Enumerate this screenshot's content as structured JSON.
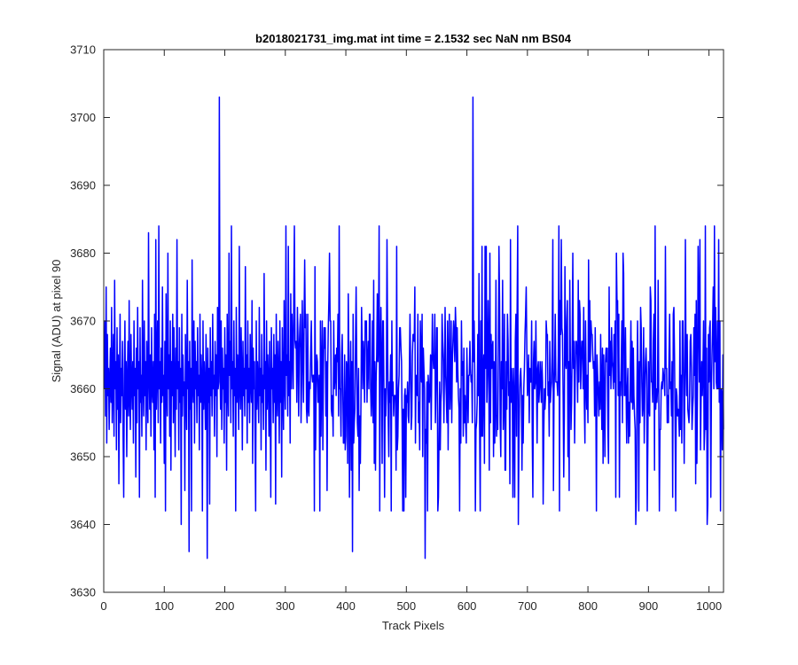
{
  "chart_data": {
    "type": "line",
    "title": "b2018021731_img.mat int time = 2.1532 sec  NaN nm BS04",
    "xlabel": "Track Pixels",
    "ylabel": "Signal (ADU) at pixel 90",
    "xlim": [
      0,
      1024
    ],
    "ylim": [
      3630,
      3710
    ],
    "xticks": [
      0,
      100,
      200,
      300,
      400,
      500,
      600,
      700,
      800,
      900,
      1000
    ],
    "yticks": [
      3630,
      3640,
      3650,
      3660,
      3670,
      3680,
      3690,
      3700,
      3710
    ],
    "grid": false,
    "legend": "none",
    "series": [
      {
        "color": "#0000ff",
        "x_start": 1,
        "x_step": 1,
        "approx_count": 1024,
        "baseline_mean": 3662,
        "y": [
          3660,
          3670,
          3656,
          3675,
          3652,
          3668,
          3659,
          3663,
          3654,
          3661,
          3666,
          3658,
          3672,
          3655,
          3662,
          3668,
          3653,
          3676,
          3660,
          3664,
          3651,
          3669,
          3657,
          3665,
          3646,
          3661,
          3671,
          3655,
          3663,
          3659,
          3667,
          3653,
          3644,
          3662,
          3670,
          3657,
          3664,
          3650,
          3661,
          3667,
          3656,
          3673,
          3659,
          3654,
          3668,
          3661,
          3657,
          3664,
          3652,
          3670,
          3659,
          3663,
          3647,
          3666,
          3655,
          3672,
          3660,
          3664,
          3644,
          3669,
          3658,
          3662,
          3653,
          3676,
          3661,
          3656,
          3670,
          3659,
          3664,
          3651,
          3667,
          3660,
          3655,
          3683,
          3662,
          3657,
          3665,
          3653,
          3669,
          3660,
          3658,
          3664,
          3651,
          3671,
          3644,
          3682,
          3657,
          3663,
          3670,
          3655,
          3684,
          3660,
          3664,
          3652,
          3666,
          3658,
          3675,
          3659,
          3662,
          3649,
          3667,
          3642,
          3674,
          3661,
          3656,
          3680,
          3660,
          3665,
          3653,
          3670,
          3648,
          3664,
          3659,
          3671,
          3655,
          3669,
          3661,
          3650,
          3666,
          3657,
          3682,
          3660,
          3664,
          3651,
          3669,
          3658,
          3663,
          3640,
          3671,
          3656,
          3665,
          3659,
          3661,
          3645,
          3668,
          3660,
          3654,
          3676,
          3660,
          3664,
          3636,
          3667,
          3657,
          3663,
          3642,
          3679,
          3661,
          3658,
          3670,
          3652,
          3667,
          3660,
          3664,
          3655,
          3669,
          3659,
          3662,
          3651,
          3671,
          3658,
          3665,
          3661,
          3642,
          3670,
          3657,
          3664,
          3660,
          3654,
          3668,
          3661,
          3635,
          3666,
          3658,
          3663,
          3643,
          3669,
          3659,
          3664,
          3656,
          3671,
          3660,
          3662,
          3653,
          3667,
          3659,
          3665,
          3650,
          3672,
          3660,
          3661,
          3703,
          3664,
          3657,
          3670,
          3654,
          3666,
          3660,
          3663,
          3652,
          3669,
          3658,
          3665,
          3648,
          3671,
          3661,
          3656,
          3680,
          3662,
          3667,
          3655,
          3684,
          3660,
          3664,
          3653,
          3670,
          3659,
          3663,
          3642,
          3672,
          3658,
          3665,
          3661,
          3654,
          3681,
          3660,
          3657,
          3669,
          3662,
          3651,
          3667,
          3659,
          3663,
          3656,
          3678,
          3660,
          3665,
          3652,
          3670,
          3658,
          3663,
          3655,
          3668,
          3661,
          3658,
          3673,
          3649,
          3666,
          3660,
          3664,
          3653,
          3642,
          3670,
          3657,
          3664,
          3660,
          3655,
          3672,
          3659,
          3663,
          3651,
          3668,
          3658,
          3662,
          3654,
          3677,
          3660,
          3664,
          3648,
          3670,
          3657,
          3665,
          3661,
          3653,
          3667,
          3659,
          3644,
          3669,
          3660,
          3663,
          3655,
          3668,
          3658,
          3665,
          3643,
          3671,
          3660,
          3656,
          3667,
          3662,
          3652,
          3670,
          3658,
          3664,
          3647,
          3669,
          3660,
          3654,
          3673,
          3661,
          3657,
          3684,
          3662,
          3665,
          3656,
          3681,
          3659,
          3664,
          3652,
          3674,
          3660
        ]
      }
    ]
  }
}
